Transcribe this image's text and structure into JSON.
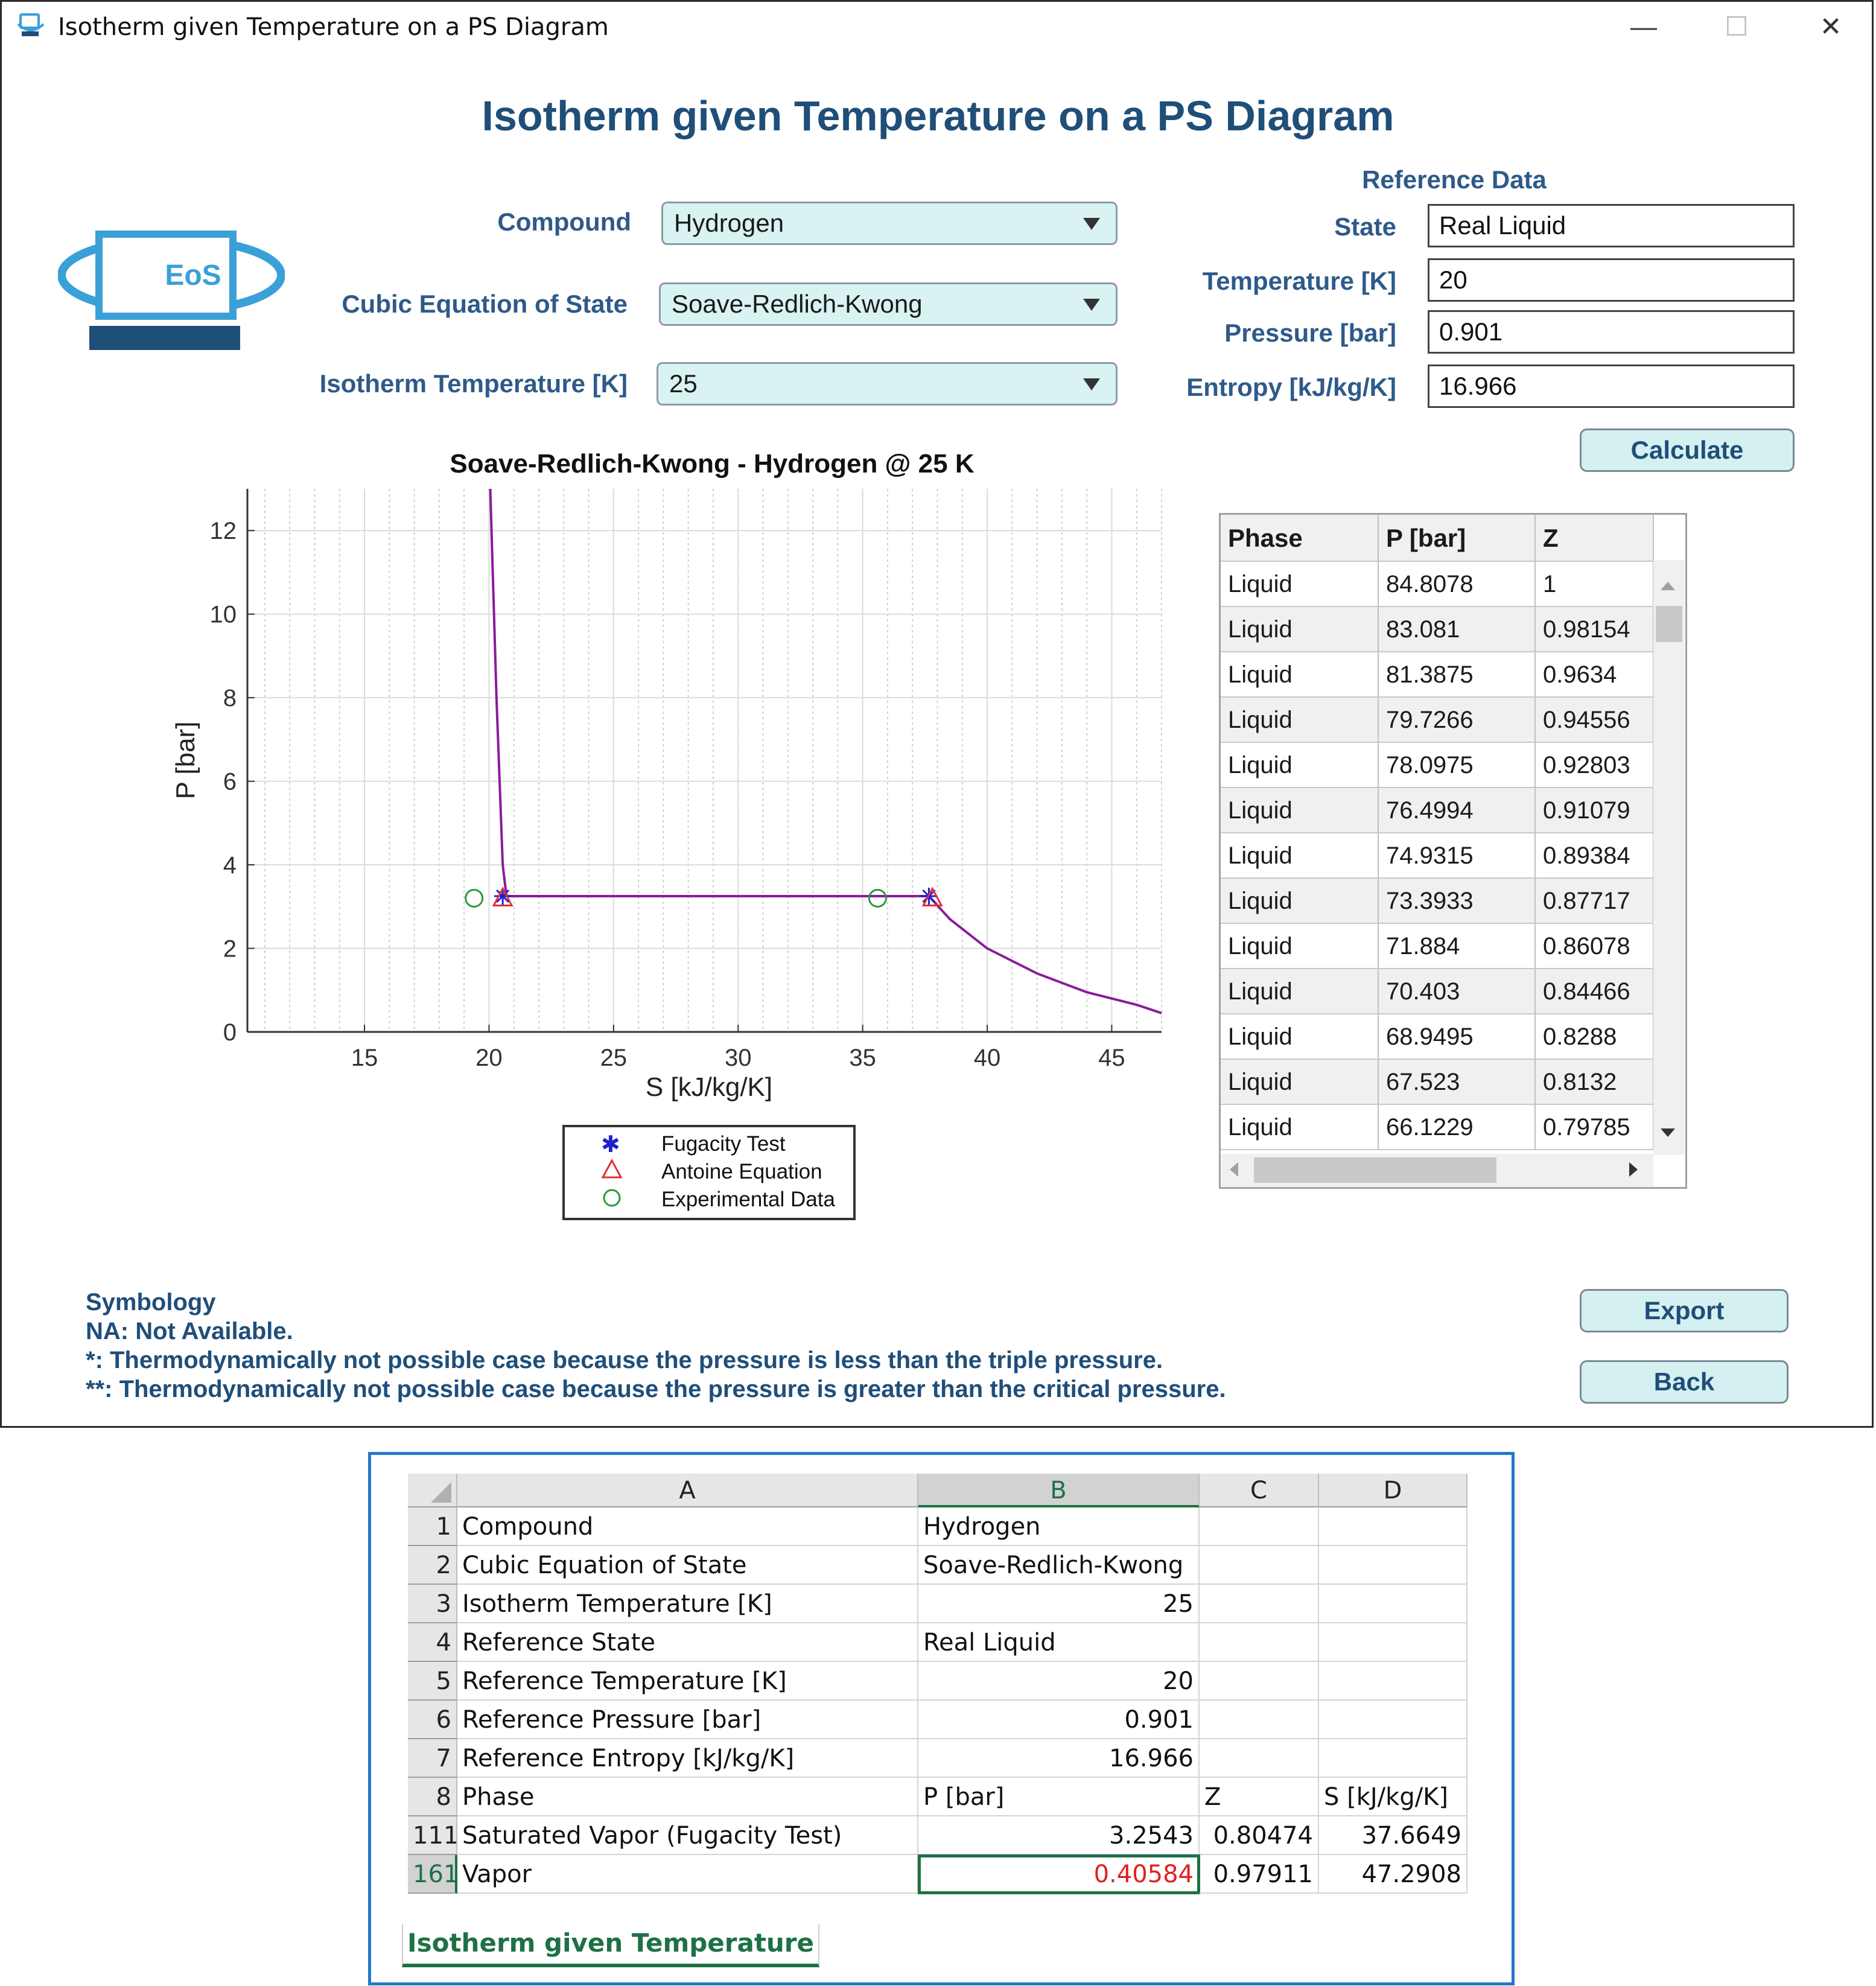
{
  "window": {
    "title": "Isotherm given Temperature on a PS Diagram",
    "controls": [
      "minimize",
      "maximize",
      "close"
    ]
  },
  "main_title": "Isotherm given Temperature on a PS Diagram",
  "logo": {
    "text": "EoS"
  },
  "inputs": {
    "compound_label": "Compound",
    "compound_value": "Hydrogen",
    "eos_label": "Cubic Equation of State",
    "eos_value": "Soave-Redlich-Kwong",
    "iso_label": "Isotherm Temperature [K]",
    "iso_value": "25"
  },
  "reference": {
    "heading": "Reference Data",
    "state_label": "State",
    "state_value": "Real Liquid",
    "temp_label": "Temperature [K]",
    "temp_value": "20",
    "pressure_label": "Pressure [bar]",
    "pressure_value": "0.901",
    "entropy_label": "Entropy [kJ/kg/K]",
    "entropy_value": "16.966"
  },
  "buttons": {
    "calculate": "Calculate",
    "export": "Export",
    "back": "Back"
  },
  "chart_data": {
    "type": "line",
    "title": "Soave-Redlich-Kwong - Hydrogen @ 25 K",
    "xlabel": "S [kJ/kg/K]",
    "ylabel": "P [bar]",
    "xlim": [
      10.3,
      47
    ],
    "ylim": [
      0,
      13
    ],
    "xticks": [
      15,
      20,
      25,
      30,
      35,
      40,
      45
    ],
    "yticks": [
      0,
      2,
      4,
      6,
      8,
      10,
      12
    ],
    "grid": true,
    "legend_position": "below",
    "series": [
      {
        "type": "line",
        "color": "#8b1a9c",
        "x": [
          20.05,
          20.3,
          20.55,
          20.7,
          37.66,
          38.5,
          40,
          42,
          44,
          46,
          47
        ],
        "y": [
          13,
          8,
          4,
          3.25,
          3.25,
          2.7,
          2.0,
          1.4,
          0.95,
          0.65,
          0.45
        ]
      },
      {
        "name": "Fugacity Test",
        "marker": "star",
        "color": "#1f1fd0",
        "x": [
          20.55,
          37.66
        ],
        "y": [
          3.25,
          3.25
        ]
      },
      {
        "name": "Antoine Equation",
        "marker": "triangle",
        "color": "#e03030",
        "x": [
          20.55,
          37.8
        ],
        "y": [
          3.2,
          3.2
        ]
      },
      {
        "name": "Experimental Data",
        "marker": "circle",
        "color": "#2a9a3a",
        "x": [
          19.4,
          35.6
        ],
        "y": [
          3.2,
          3.2
        ]
      }
    ]
  },
  "results_table": {
    "headers": [
      "Phase",
      "P [bar]",
      "Z"
    ],
    "rows": [
      [
        "Liquid",
        "84.8078",
        "1"
      ],
      [
        "Liquid",
        "83.081",
        "0.98154"
      ],
      [
        "Liquid",
        "81.3875",
        "0.9634"
      ],
      [
        "Liquid",
        "79.7266",
        "0.94556"
      ],
      [
        "Liquid",
        "78.0975",
        "0.92803"
      ],
      [
        "Liquid",
        "76.4994",
        "0.91079"
      ],
      [
        "Liquid",
        "74.9315",
        "0.89384"
      ],
      [
        "Liquid",
        "73.3933",
        "0.87717"
      ],
      [
        "Liquid",
        "71.884",
        "0.86078"
      ],
      [
        "Liquid",
        "70.403",
        "0.84466"
      ],
      [
        "Liquid",
        "68.9495",
        "0.8288"
      ],
      [
        "Liquid",
        "67.523",
        "0.8132"
      ],
      [
        "Liquid",
        "66.1229",
        "0.79785"
      ]
    ]
  },
  "symbology": {
    "heading": "Symbology",
    "lines": [
      "NA: Not Available.",
      "*: Thermodynamically not possible case because the pressure is less than the triple pressure.",
      "**: Thermodynamically not possible case because the pressure is greater than the critical pressure."
    ]
  },
  "spreadsheet": {
    "columns": [
      "A",
      "B",
      "C",
      "D"
    ],
    "rows": [
      {
        "num": "1",
        "a": "Compound",
        "b": "Hydrogen",
        "c": "",
        "d": "",
        "b_align": "left"
      },
      {
        "num": "2",
        "a": "Cubic Equation of State",
        "b": "Soave-Redlich-Kwong",
        "c": "",
        "d": "",
        "b_align": "left"
      },
      {
        "num": "3",
        "a": "Isotherm Temperature [K]",
        "b": "25",
        "c": "",
        "d": "",
        "b_align": "right"
      },
      {
        "num": "4",
        "a": "Reference State",
        "b": "Real Liquid",
        "c": "",
        "d": "",
        "b_align": "left"
      },
      {
        "num": "5",
        "a": "Reference Temperature [K]",
        "b": "20",
        "c": "",
        "d": "",
        "b_align": "right"
      },
      {
        "num": "6",
        "a": "Reference Pressure [bar]",
        "b": "0.901",
        "c": "",
        "d": "",
        "b_align": "right"
      },
      {
        "num": "7",
        "a": "Reference Entropy [kJ/kg/K]",
        "b": "16.966",
        "c": "",
        "d": "",
        "b_align": "right"
      },
      {
        "num": "8",
        "a": "Phase",
        "b": "P [bar]",
        "c": "Z",
        "d": "S [kJ/kg/K]",
        "b_align": "left"
      },
      {
        "num": "111",
        "a": "Saturated Vapor (Fugacity Test)",
        "b": "3.2543",
        "c": "0.80474",
        "d": "37.6649",
        "b_align": "right"
      },
      {
        "num": "161",
        "a": "Vapor",
        "b": "0.40584",
        "c": "0.97911",
        "d": "47.2908",
        "b_align": "right",
        "selected": true
      }
    ],
    "sheet_tab": "Isotherm given Temperature"
  }
}
